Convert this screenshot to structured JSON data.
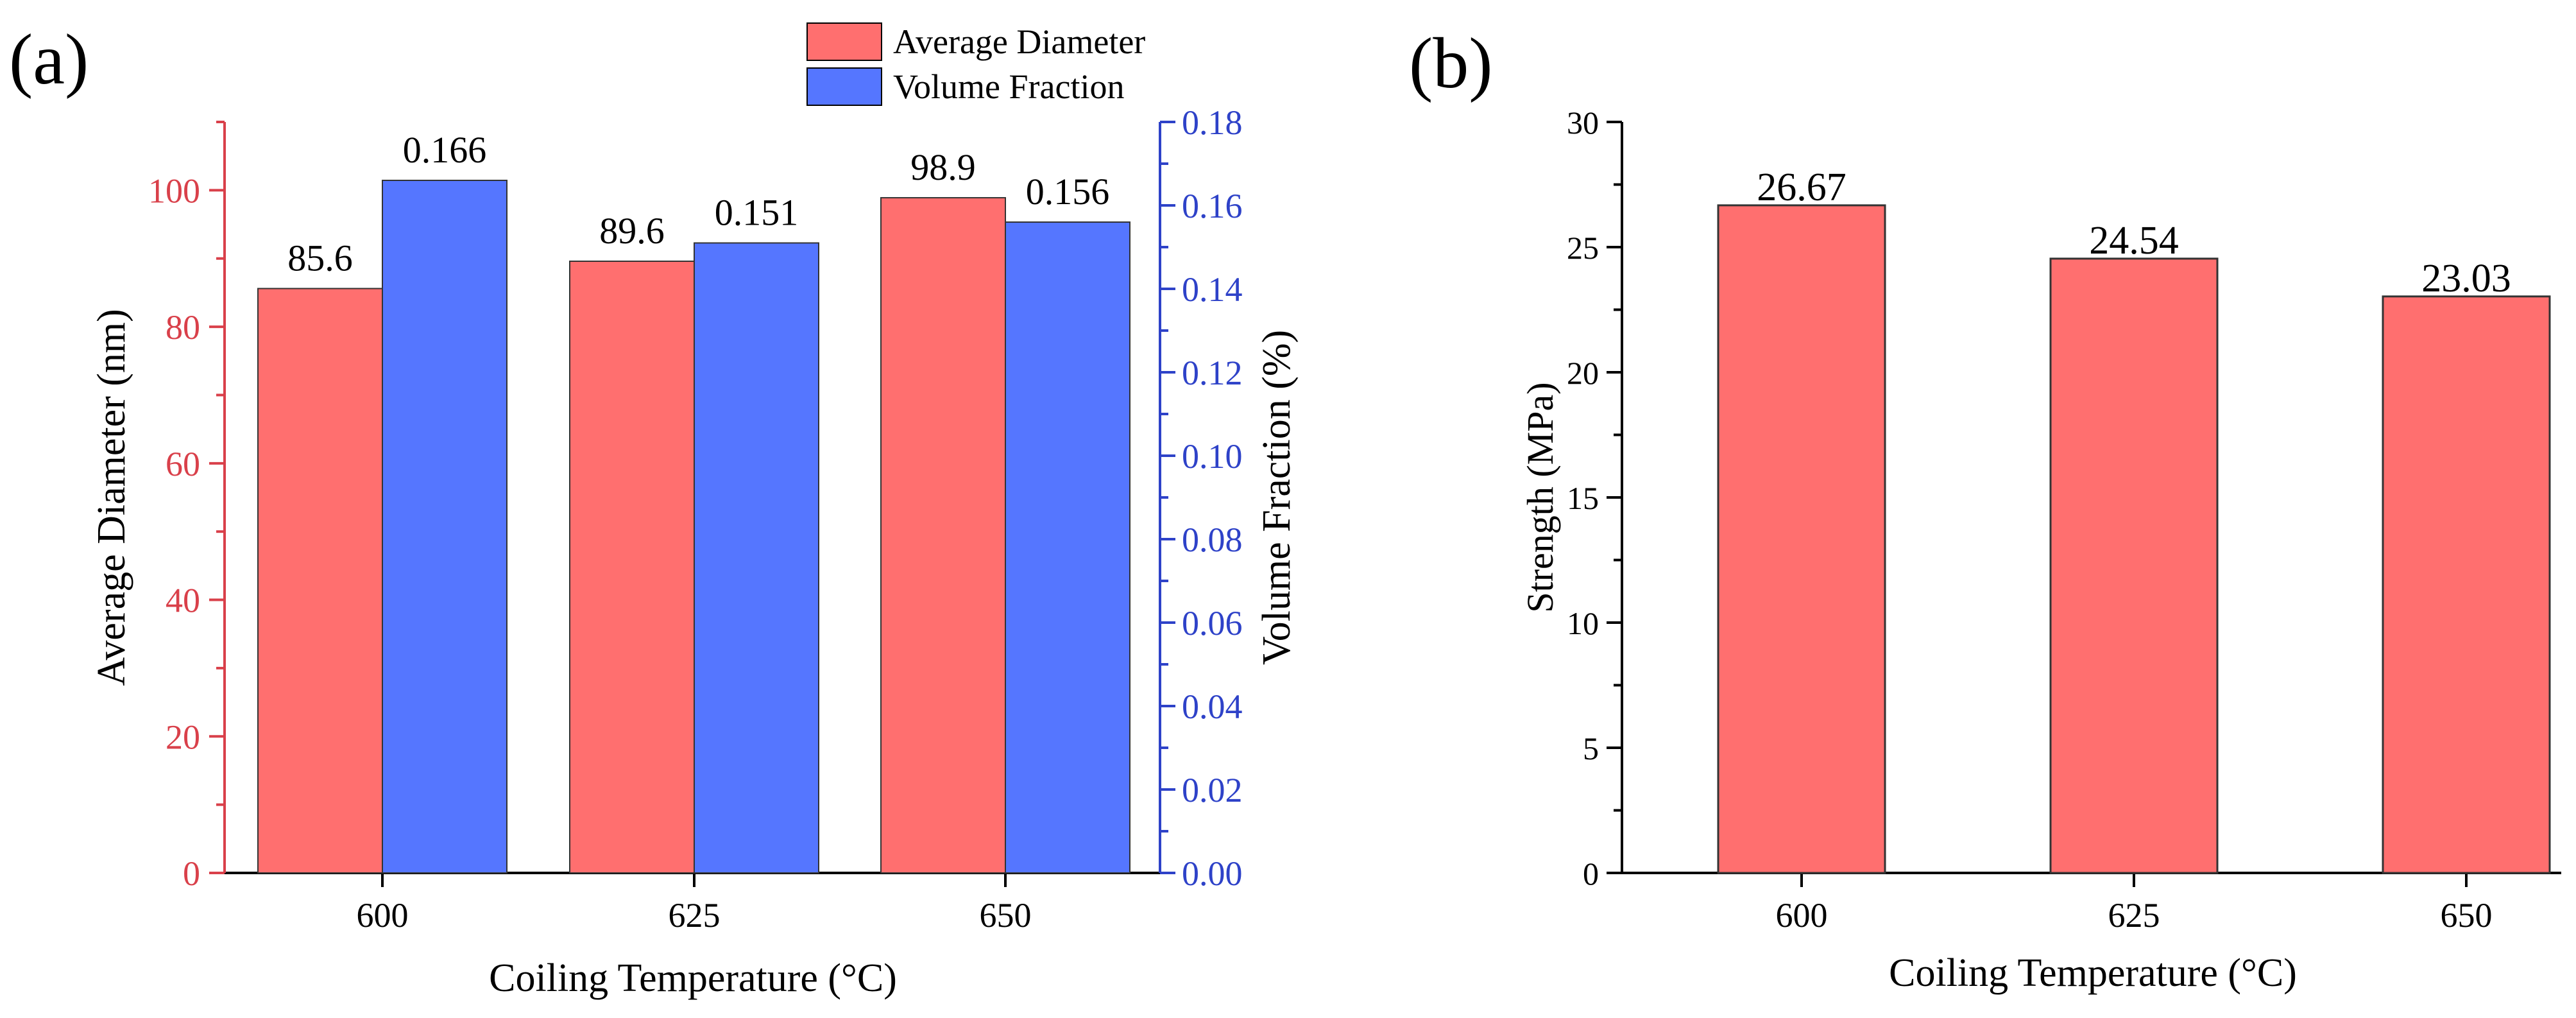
{
  "colors": {
    "red": "#FF6F6F",
    "blue": "#5576FF",
    "red_axis": "#D9404A",
    "blue_axis": "#2E42C8",
    "black": "#000000"
  },
  "chart_data": [
    {
      "type": "bar",
      "panel_label": "(a)",
      "categories": [
        "600",
        "625",
        "650"
      ],
      "xlabel": "Coiling Temperature (°C)",
      "legend": [
        "Average Diameter",
        "Volume Fraction"
      ],
      "legend_placement": "top-center",
      "series": [
        {
          "name": "Average Diameter",
          "axis": "left",
          "values": [
            85.6,
            89.6,
            98.9
          ],
          "labels": [
            "85.6",
            "89.6",
            "98.9"
          ]
        },
        {
          "name": "Volume Fraction",
          "axis": "right",
          "values": [
            0.166,
            0.151,
            0.156
          ],
          "labels": [
            "0.166",
            "0.151",
            "0.156"
          ]
        }
      ],
      "ylabel_left": "Average Diameter (nm)",
      "ylim_left": [
        0,
        110
      ],
      "yticks_left": [
        "0",
        "20",
        "40",
        "60",
        "80",
        "100"
      ],
      "ylabel_right": "Volume Fraction (%)",
      "ylim_right": [
        0,
        0.18
      ],
      "yticks_right": [
        "0.00",
        "0.02",
        "0.04",
        "0.06",
        "0.08",
        "0.10",
        "0.12",
        "0.14",
        "0.16",
        "0.18"
      ]
    },
    {
      "type": "bar",
      "panel_label": "(b)",
      "categories": [
        "600",
        "625",
        "650"
      ],
      "xlabel": "Coiling Temperature (°C)",
      "ylabel": "Strength (MPa)",
      "ylim": [
        0,
        30
      ],
      "yticks": [
        "0",
        "5",
        "10",
        "15",
        "20",
        "25",
        "30"
      ],
      "values": [
        26.67,
        24.54,
        23.03
      ],
      "labels": [
        "26.67",
        "24.54",
        "23.03"
      ]
    }
  ]
}
